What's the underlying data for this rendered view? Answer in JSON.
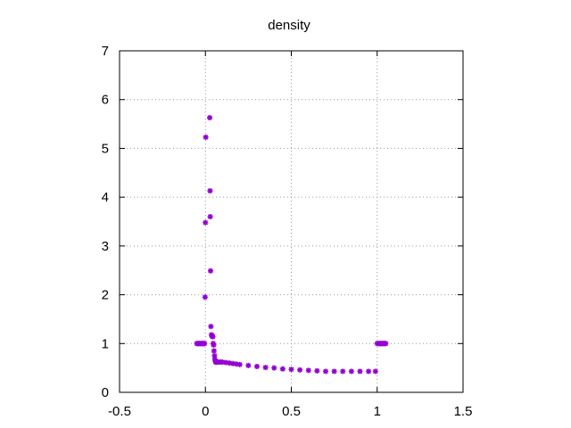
{
  "chart_data": {
    "type": "scatter",
    "title": "density",
    "xlabel": "",
    "ylabel": "",
    "xlim": [
      -0.5,
      1.5
    ],
    "ylim": [
      0,
      7
    ],
    "x_ticks": [
      "-0.5",
      "0",
      "0.5",
      "1",
      "1.5"
    ],
    "y_ticks": [
      "0",
      "1",
      "2",
      "3",
      "4",
      "5",
      "6",
      "7"
    ],
    "grid": true,
    "grid_style": "dotted",
    "legend": "none",
    "marker_color": "#9400d3",
    "series": [
      {
        "x": [
          -0.05,
          -0.045,
          -0.04,
          -0.035,
          -0.03,
          -0.025,
          -0.02,
          -0.015,
          -0.01,
          -0.005,
          -0.002,
          0.0,
          0.002,
          0.025,
          0.027,
          0.028,
          0.03,
          0.032,
          0.035,
          0.038,
          0.04,
          0.043,
          0.045,
          0.048,
          0.05,
          0.053,
          0.055,
          0.058,
          0.06,
          0.063,
          0.066,
          0.07,
          0.08,
          0.09,
          0.1,
          0.12,
          0.14,
          0.16,
          0.18,
          0.2,
          0.25,
          0.3,
          0.35,
          0.4,
          0.45,
          0.5,
          0.55,
          0.6,
          0.65,
          0.7,
          0.75,
          0.8,
          0.85,
          0.9,
          0.95,
          0.99,
          1.0,
          1.01,
          1.015,
          1.02,
          1.025,
          1.03,
          1.035,
          1.04,
          1.045,
          1.05
        ],
        "y": [
          1.0,
          1.0,
          1.0,
          1.0,
          1.0,
          1.0,
          1.0,
          1.0,
          1.0,
          1.0,
          1.95,
          3.48,
          5.23,
          5.63,
          4.13,
          3.6,
          2.49,
          1.35,
          1.18,
          1.16,
          1.15,
          1.14,
          1.0,
          0.97,
          0.85,
          0.75,
          0.68,
          0.64,
          0.62,
          0.62,
          0.62,
          0.62,
          0.62,
          0.62,
          0.62,
          0.61,
          0.6,
          0.59,
          0.58,
          0.57,
          0.55,
          0.53,
          0.51,
          0.5,
          0.48,
          0.47,
          0.46,
          0.45,
          0.44,
          0.43,
          0.43,
          0.43,
          0.43,
          0.43,
          0.43,
          0.43,
          1.0,
          1.0,
          1.0,
          1.0,
          1.0,
          1.0,
          1.0,
          1.0,
          1.0,
          1.0
        ]
      }
    ]
  }
}
